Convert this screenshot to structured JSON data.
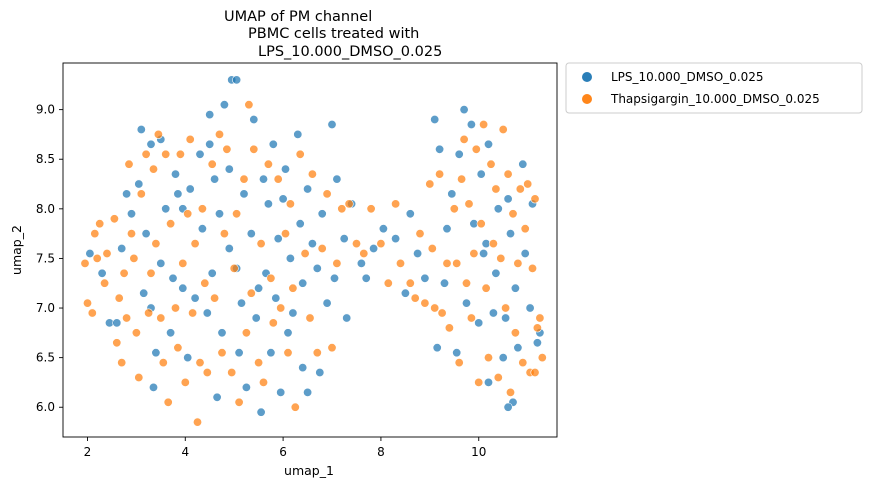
{
  "chart_data": {
    "type": "scatter",
    "title_lines": [
      "UMAP of PM channel",
      "PBMC cells treated with",
      "LPS_10.000_DMSO_0.025"
    ],
    "xlabel": "umap_1",
    "ylabel": "umap_2",
    "xlim": [
      1.5,
      11.6
    ],
    "ylim": [
      5.7,
      9.47
    ],
    "xticks": [
      2,
      4,
      6,
      8,
      10
    ],
    "xtick_labels": [
      "2",
      "4",
      "6",
      "8",
      "10"
    ],
    "yticks": [
      6.0,
      6.5,
      7.0,
      7.5,
      8.0,
      8.5,
      9.0
    ],
    "ytick_labels": [
      "6.0",
      "6.5",
      "7.0",
      "7.5",
      "8.0",
      "8.5",
      "9.0"
    ],
    "grid": false,
    "legend_position": "outside-upper-right",
    "series": [
      {
        "name": "LPS_10.000_DMSO_0.025",
        "color": "#1f77b4",
        "points": [
          [
            2.05,
            7.55
          ],
          [
            2.3,
            7.35
          ],
          [
            2.45,
            6.85
          ],
          [
            2.6,
            6.85
          ],
          [
            2.7,
            7.6
          ],
          [
            2.8,
            8.15
          ],
          [
            2.9,
            7.95
          ],
          [
            3.05,
            8.25
          ],
          [
            3.1,
            8.8
          ],
          [
            3.15,
            7.15
          ],
          [
            3.2,
            7.75
          ],
          [
            3.3,
            7.0
          ],
          [
            3.3,
            8.65
          ],
          [
            3.35,
            6.2
          ],
          [
            3.4,
            6.55
          ],
          [
            3.5,
            8.7
          ],
          [
            3.5,
            7.45
          ],
          [
            3.6,
            8.0
          ],
          [
            3.7,
            6.75
          ],
          [
            3.75,
            7.3
          ],
          [
            3.8,
            8.35
          ],
          [
            3.85,
            8.15
          ],
          [
            3.95,
            8.0
          ],
          [
            3.95,
            7.2
          ],
          [
            4.05,
            6.5
          ],
          [
            4.1,
            8.2
          ],
          [
            4.2,
            7.1
          ],
          [
            4.3,
            8.55
          ],
          [
            4.35,
            7.8
          ],
          [
            4.45,
            6.95
          ],
          [
            4.5,
            8.95
          ],
          [
            4.5,
            8.65
          ],
          [
            4.55,
            7.35
          ],
          [
            4.6,
            8.3
          ],
          [
            4.65,
            6.1
          ],
          [
            4.7,
            7.95
          ],
          [
            4.75,
            6.75
          ],
          [
            4.8,
            9.05
          ],
          [
            4.9,
            7.6
          ],
          [
            4.9,
            8.4
          ],
          [
            4.95,
            9.3
          ],
          [
            5.05,
            9.3
          ],
          [
            5.05,
            7.4
          ],
          [
            5.1,
            6.55
          ],
          [
            5.15,
            7.05
          ],
          [
            5.2,
            8.15
          ],
          [
            5.25,
            6.2
          ],
          [
            5.35,
            7.75
          ],
          [
            5.4,
            8.9
          ],
          [
            5.45,
            6.9
          ],
          [
            5.5,
            7.2
          ],
          [
            5.55,
            5.95
          ],
          [
            5.6,
            8.3
          ],
          [
            5.65,
            7.35
          ],
          [
            5.7,
            8.05
          ],
          [
            5.75,
            6.55
          ],
          [
            5.8,
            8.65
          ],
          [
            5.85,
            7.1
          ],
          [
            5.9,
            7.7
          ],
          [
            5.95,
            6.15
          ],
          [
            6.0,
            8.1
          ],
          [
            6.05,
            8.4
          ],
          [
            6.1,
            6.75
          ],
          [
            6.15,
            7.5
          ],
          [
            6.2,
            6.95
          ],
          [
            6.3,
            8.75
          ],
          [
            6.35,
            7.85
          ],
          [
            6.4,
            6.4
          ],
          [
            6.4,
            7.25
          ],
          [
            6.5,
            6.15
          ],
          [
            6.5,
            8.2
          ],
          [
            6.6,
            7.65
          ],
          [
            6.7,
            7.4
          ],
          [
            6.75,
            6.35
          ],
          [
            6.8,
            7.95
          ],
          [
            6.9,
            7.05
          ],
          [
            7.0,
            8.85
          ],
          [
            7.05,
            7.3
          ],
          [
            7.1,
            8.3
          ],
          [
            7.25,
            7.7
          ],
          [
            7.3,
            6.9
          ],
          [
            7.4,
            8.05
          ],
          [
            7.6,
            7.45
          ],
          [
            7.7,
            7.3
          ],
          [
            7.85,
            7.6
          ],
          [
            8.05,
            7.8
          ],
          [
            8.3,
            7.7
          ],
          [
            8.5,
            7.15
          ],
          [
            8.6,
            7.95
          ],
          [
            8.75,
            7.55
          ],
          [
            8.9,
            7.3
          ],
          [
            9.1,
            8.9
          ],
          [
            9.15,
            6.6
          ],
          [
            9.2,
            8.6
          ],
          [
            9.3,
            7.25
          ],
          [
            9.35,
            7.8
          ],
          [
            9.45,
            8.15
          ],
          [
            9.55,
            6.55
          ],
          [
            9.6,
            8.55
          ],
          [
            9.7,
            9.0
          ],
          [
            9.75,
            7.05
          ],
          [
            9.85,
            8.85
          ],
          [
            9.9,
            7.85
          ],
          [
            10.0,
            6.85
          ],
          [
            10.05,
            8.35
          ],
          [
            10.1,
            7.55
          ],
          [
            10.2,
            6.25
          ],
          [
            10.2,
            8.65
          ],
          [
            10.3,
            6.95
          ],
          [
            10.35,
            7.35
          ],
          [
            10.4,
            8.0
          ],
          [
            10.5,
            6.5
          ],
          [
            10.55,
            6.9
          ],
          [
            10.6,
            8.1
          ],
          [
            10.65,
            7.75
          ],
          [
            10.7,
            6.05
          ],
          [
            10.75,
            7.2
          ],
          [
            10.8,
            6.6
          ],
          [
            10.9,
            8.45
          ],
          [
            10.95,
            7.55
          ],
          [
            11.05,
            7.0
          ],
          [
            11.1,
            8.05
          ],
          [
            11.2,
            6.65
          ],
          [
            11.25,
            6.75
          ],
          [
            10.6,
            6.0
          ],
          [
            10.15,
            7.65
          ]
        ]
      },
      {
        "name": "Thapsigargin_10.000_DMSO_0.025",
        "color": "#ff7f0e",
        "points": [
          [
            1.95,
            7.45
          ],
          [
            2.0,
            7.05
          ],
          [
            2.1,
            6.95
          ],
          [
            2.15,
            7.75
          ],
          [
            2.2,
            7.5
          ],
          [
            2.25,
            7.85
          ],
          [
            2.35,
            7.25
          ],
          [
            2.4,
            7.55
          ],
          [
            2.55,
            7.9
          ],
          [
            2.6,
            6.65
          ],
          [
            2.65,
            7.1
          ],
          [
            2.7,
            6.45
          ],
          [
            2.75,
            7.35
          ],
          [
            2.8,
            6.9
          ],
          [
            2.85,
            8.45
          ],
          [
            2.9,
            7.75
          ],
          [
            2.95,
            7.5
          ],
          [
            3.0,
            6.75
          ],
          [
            3.05,
            6.3
          ],
          [
            3.1,
            8.15
          ],
          [
            3.2,
            8.55
          ],
          [
            3.25,
            6.95
          ],
          [
            3.3,
            7.35
          ],
          [
            3.35,
            8.4
          ],
          [
            3.4,
            7.65
          ],
          [
            3.45,
            8.75
          ],
          [
            3.5,
            6.9
          ],
          [
            3.55,
            6.45
          ],
          [
            3.6,
            8.55
          ],
          [
            3.65,
            6.05
          ],
          [
            3.7,
            7.85
          ],
          [
            3.8,
            7.0
          ],
          [
            3.85,
            6.6
          ],
          [
            3.9,
            8.55
          ],
          [
            3.95,
            7.45
          ],
          [
            4.0,
            6.25
          ],
          [
            4.05,
            7.95
          ],
          [
            4.1,
            8.7
          ],
          [
            4.15,
            6.95
          ],
          [
            4.2,
            7.65
          ],
          [
            4.25,
            5.85
          ],
          [
            4.3,
            6.45
          ],
          [
            4.35,
            8.0
          ],
          [
            4.4,
            7.25
          ],
          [
            4.45,
            6.35
          ],
          [
            4.55,
            8.45
          ],
          [
            4.6,
            7.1
          ],
          [
            4.7,
            8.75
          ],
          [
            4.75,
            6.55
          ],
          [
            4.8,
            7.75
          ],
          [
            4.85,
            8.6
          ],
          [
            4.95,
            6.35
          ],
          [
            5.0,
            7.4
          ],
          [
            5.05,
            7.95
          ],
          [
            5.1,
            6.05
          ],
          [
            5.2,
            8.3
          ],
          [
            5.25,
            6.75
          ],
          [
            5.3,
            9.05
          ],
          [
            5.35,
            7.15
          ],
          [
            5.4,
            8.6
          ],
          [
            5.5,
            6.45
          ],
          [
            5.55,
            7.65
          ],
          [
            5.6,
            6.25
          ],
          [
            5.7,
            8.45
          ],
          [
            5.75,
            7.3
          ],
          [
            5.8,
            6.85
          ],
          [
            5.9,
            8.3
          ],
          [
            5.95,
            7.0
          ],
          [
            6.05,
            7.75
          ],
          [
            6.1,
            6.55
          ],
          [
            6.15,
            8.05
          ],
          [
            6.2,
            7.2
          ],
          [
            6.25,
            6.0
          ],
          [
            6.35,
            8.55
          ],
          [
            6.45,
            7.55
          ],
          [
            6.55,
            6.9
          ],
          [
            6.6,
            8.35
          ],
          [
            6.7,
            6.55
          ],
          [
            6.8,
            7.6
          ],
          [
            6.9,
            8.15
          ],
          [
            7.0,
            6.6
          ],
          [
            7.1,
            7.45
          ],
          [
            7.2,
            8.0
          ],
          [
            7.35,
            8.05
          ],
          [
            7.5,
            7.65
          ],
          [
            7.65,
            7.55
          ],
          [
            7.8,
            8.0
          ],
          [
            8.0,
            7.65
          ],
          [
            8.15,
            7.25
          ],
          [
            8.3,
            8.05
          ],
          [
            8.4,
            7.45
          ],
          [
            8.6,
            7.25
          ],
          [
            8.7,
            7.1
          ],
          [
            8.8,
            7.75
          ],
          [
            8.9,
            7.05
          ],
          [
            9.0,
            8.25
          ],
          [
            9.05,
            7.6
          ],
          [
            9.1,
            7.0
          ],
          [
            9.2,
            8.35
          ],
          [
            9.25,
            6.95
          ],
          [
            9.35,
            7.45
          ],
          [
            9.4,
            6.8
          ],
          [
            9.5,
            8.0
          ],
          [
            9.55,
            7.45
          ],
          [
            9.6,
            6.45
          ],
          [
            9.65,
            8.3
          ],
          [
            9.7,
            8.7
          ],
          [
            9.75,
            7.25
          ],
          [
            9.8,
            8.05
          ],
          [
            9.85,
            6.9
          ],
          [
            9.9,
            7.55
          ],
          [
            9.95,
            8.6
          ],
          [
            10.0,
            6.25
          ],
          [
            10.05,
            7.85
          ],
          [
            10.1,
            8.85
          ],
          [
            10.15,
            7.2
          ],
          [
            10.2,
            6.5
          ],
          [
            10.25,
            8.45
          ],
          [
            10.3,
            7.65
          ],
          [
            10.35,
            8.2
          ],
          [
            10.4,
            6.3
          ],
          [
            10.45,
            7.5
          ],
          [
            10.5,
            8.8
          ],
          [
            10.55,
            7.0
          ],
          [
            10.6,
            8.35
          ],
          [
            10.65,
            6.15
          ],
          [
            10.7,
            7.95
          ],
          [
            10.75,
            6.75
          ],
          [
            10.8,
            7.45
          ],
          [
            10.85,
            8.2
          ],
          [
            10.9,
            6.45
          ],
          [
            10.95,
            7.8
          ],
          [
            11.0,
            8.25
          ],
          [
            11.05,
            6.35
          ],
          [
            11.1,
            7.4
          ],
          [
            11.15,
            8.1
          ],
          [
            11.2,
            6.8
          ],
          [
            11.3,
            6.5
          ],
          [
            11.25,
            6.9
          ],
          [
            11.15,
            6.35
          ]
        ]
      }
    ]
  }
}
